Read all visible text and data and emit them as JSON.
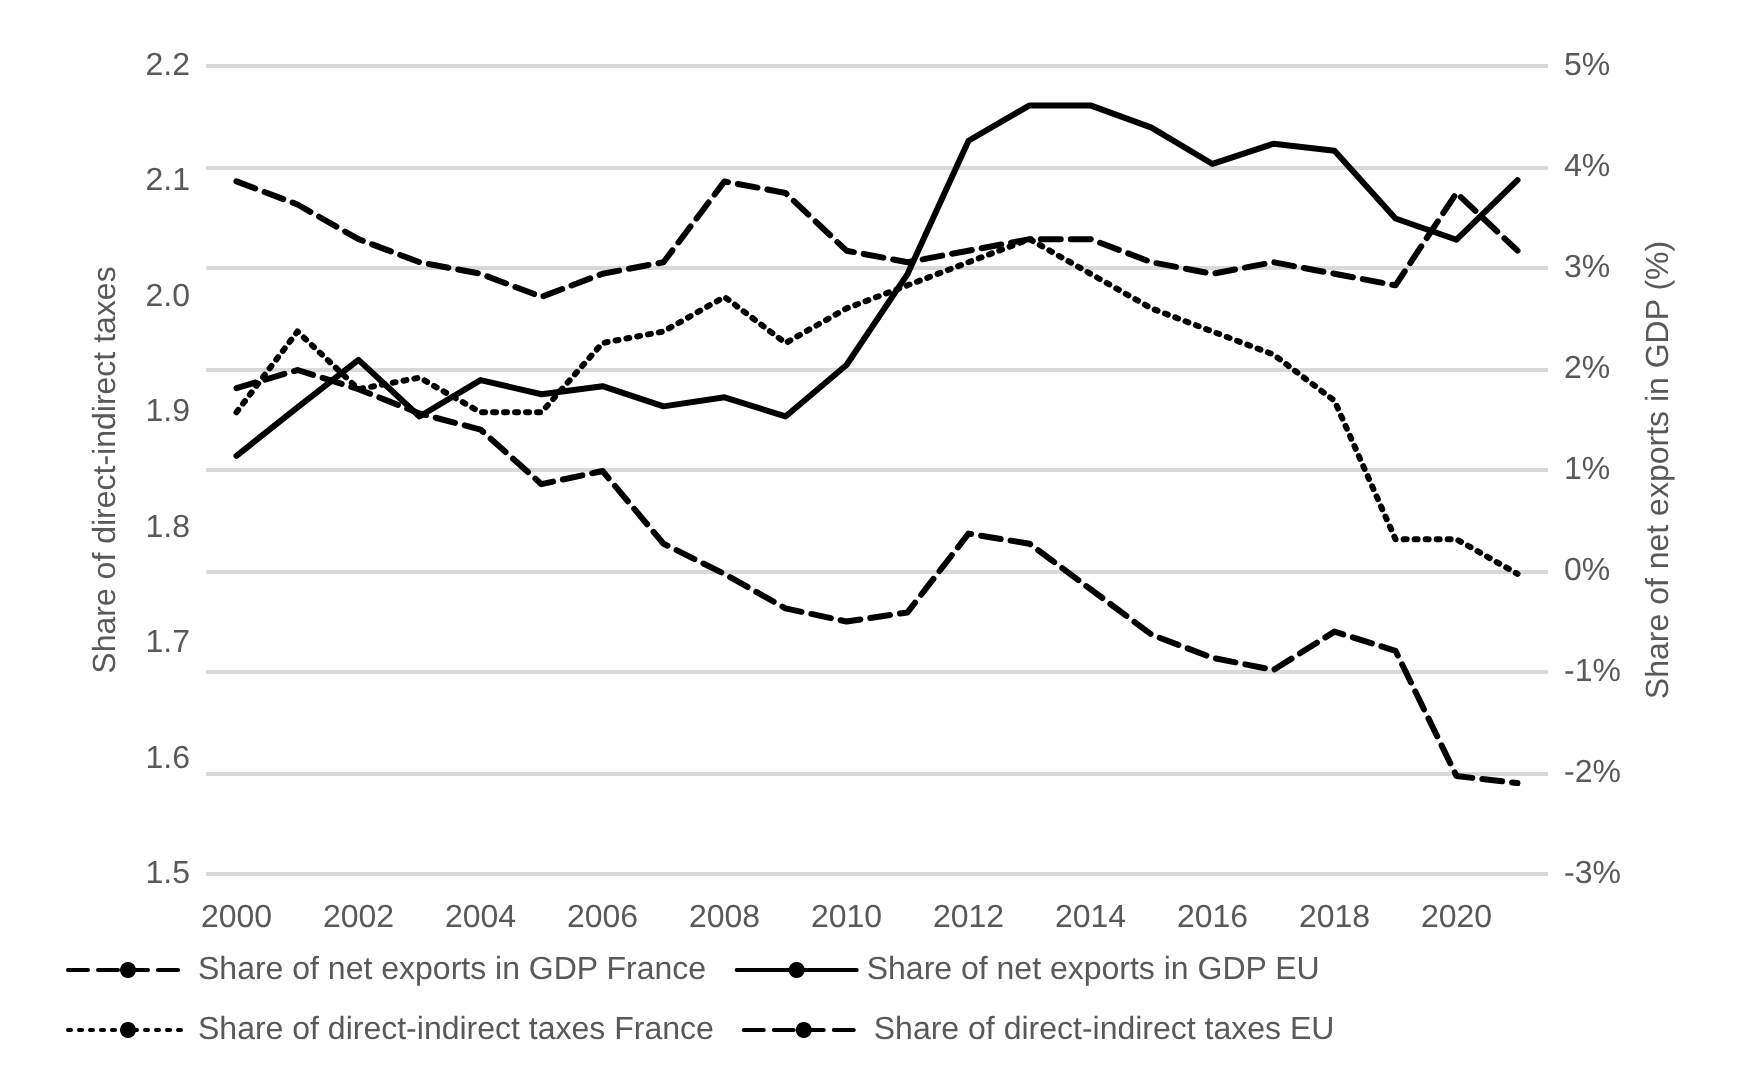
{
  "chart_data": {
    "type": "line",
    "categories": [
      "2000",
      null,
      "2002",
      null,
      "2004",
      null,
      "2006",
      null,
      "2008",
      null,
      "2010",
      null,
      "2012",
      null,
      "2014",
      null,
      "2016",
      null,
      "2018",
      null,
      "2020",
      null
    ],
    "series": [
      {
        "name": "Share of net exports in GDP France",
        "color": "#000000",
        "axis": "y2",
        "line_style": "dashed",
        "values": [
          1.81,
          1.99,
          1.8,
          1.56,
          1.4,
          0.86,
          0.99,
          0.27,
          -0.03,
          -0.37,
          -0.5,
          -0.41,
          0.37,
          0.27,
          -0.18,
          -0.63,
          -0.86,
          -0.98,
          -0.6,
          -0.79,
          -2.03,
          -2.1
        ]
      },
      {
        "name": "Share of net exports in GDP EU",
        "color": "#000000",
        "axis": "y2",
        "line_style": "solid",
        "values": [
          1.14,
          1.62,
          2.09,
          1.53,
          1.89,
          1.75,
          1.83,
          1.63,
          1.72,
          1.53,
          2.04,
          2.94,
          4.26,
          4.61,
          4.61,
          4.39,
          4.03,
          4.23,
          4.16,
          3.49,
          3.28,
          3.87
        ]
      },
      {
        "name": "Share of direct-indirect taxes France",
        "color": "#000000",
        "line_style": "dotted",
        "values": [
          1.9,
          1.97,
          1.92,
          1.93,
          1.9,
          1.9,
          1.96,
          1.97,
          2.0,
          1.96,
          1.99,
          2.01,
          2.03,
          2.05,
          2.02,
          1.99,
          1.97,
          1.95,
          1.91,
          1.79,
          1.79,
          1.76
        ]
      },
      {
        "name": "Share of direct-indirect taxes EU",
        "color": "#000000",
        "line_style": "dashed",
        "values": [
          2.1,
          2.08,
          2.05,
          2.03,
          2.02,
          2.0,
          2.02,
          2.03,
          2.1,
          2.09,
          2.04,
          2.03,
          2.04,
          2.05,
          2.05,
          2.03,
          2.02,
          2.03,
          2.02,
          2.01,
          2.09,
          2.04
        ]
      }
    ],
    "ylabel": "Share of direct-indirect taxes",
    "y2label": "Share of net exports in GDP (%)",
    "ylim": [
      1.5,
      2.2
    ],
    "yticks": [
      1.5,
      1.6,
      1.7,
      1.8,
      1.9,
      {
        "value": 2,
        "label": "2.0"
      },
      2.1,
      2.2
    ],
    "y2lim": [
      -3,
      5
    ],
    "y2ticks": [
      {
        "value": -3,
        "label": "-3%"
      },
      {
        "value": -2,
        "label": "-2%"
      },
      {
        "value": -1,
        "label": "-1%"
      },
      {
        "value": 0,
        "label": "0%"
      },
      {
        "value": 1,
        "label": "1%"
      },
      {
        "value": 2,
        "label": "2%"
      },
      {
        "value": 3,
        "label": "3%"
      },
      {
        "value": 4,
        "label": "4%"
      },
      {
        "value": 5,
        "label": "5%"
      }
    ],
    "grid": "y",
    "legend": "bottom"
  }
}
